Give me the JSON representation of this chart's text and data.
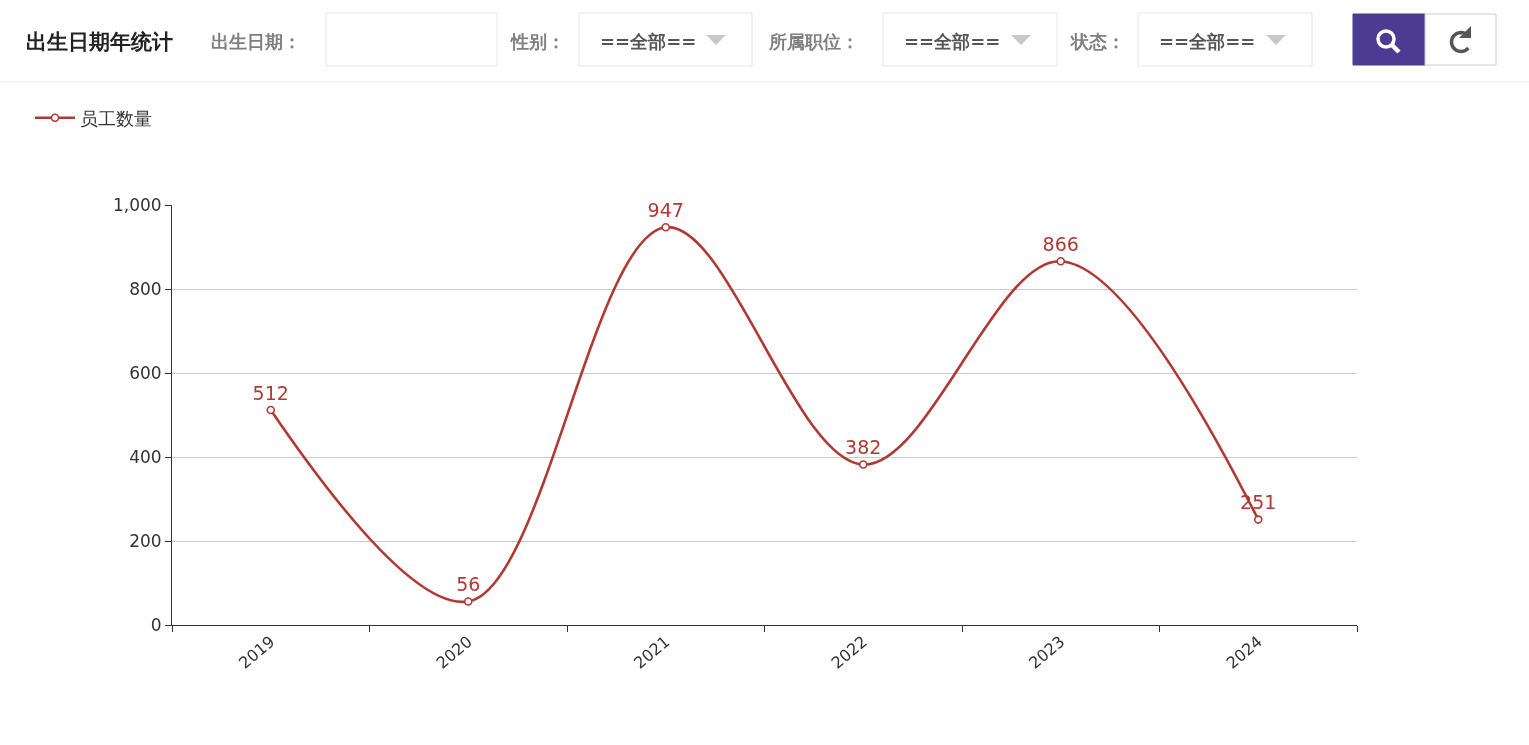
{
  "chart_data": {
    "type": "line",
    "title": "出生日期年统计",
    "categories": [
      "2019",
      "2020",
      "2021",
      "2022",
      "2023",
      "2024"
    ],
    "series": [
      {
        "name": "员工数量",
        "color": "#b03a33",
        "values": [
          512,
          56,
          947,
          382,
          866,
          251
        ]
      }
    ],
    "ylim": [
      0,
      1000
    ],
    "yticks": [
      0,
      200,
      400,
      600,
      800,
      {
        "value": 1000,
        "label": "1,000"
      }
    ],
    "grid": "y",
    "legend": "top left",
    "marker": "circle",
    "line_style": "solid",
    "data_labels": true,
    "annotations": [
      "出生日期：",
      "性别：",
      "==全部==",
      "所属职位：",
      "==全部==",
      "状态：",
      "==全部=="
    ]
  }
}
